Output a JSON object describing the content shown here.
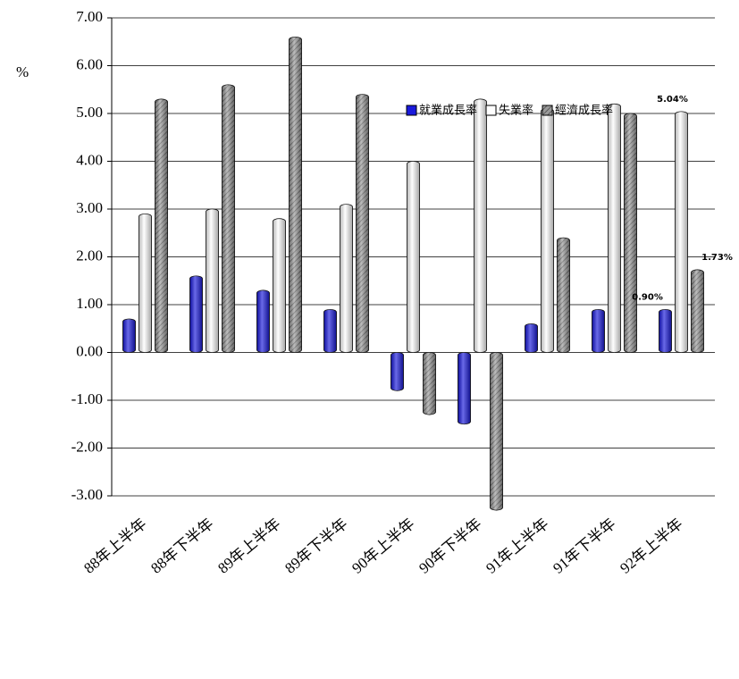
{
  "chart_data": {
    "type": "bar",
    "y_label": "%",
    "categories": [
      "88年上半年",
      "88年下半年",
      "89年上半年",
      "89年下半年",
      "90年上半年",
      "90年下半年",
      "91年上半年",
      "91年下半年",
      "92年上半年"
    ],
    "series": [
      {
        "name": "就業成長率",
        "color": "#1a1adc",
        "values": [
          0.7,
          1.6,
          1.3,
          0.9,
          -0.8,
          -1.5,
          0.6,
          0.9,
          0.9
        ],
        "value_labels": [
          null,
          null,
          null,
          null,
          null,
          null,
          null,
          null,
          "0.90%"
        ]
      },
      {
        "name": "失業率",
        "color": "#ffffff",
        "values": [
          2.9,
          3.0,
          2.8,
          3.1,
          4.0,
          5.3,
          5.1,
          5.2,
          5.04
        ],
        "value_labels": [
          null,
          null,
          null,
          null,
          null,
          null,
          null,
          null,
          "5.04%"
        ]
      },
      {
        "name": "經濟成長率",
        "color": "#8c8c8c",
        "pattern": "hatch",
        "values": [
          5.3,
          5.6,
          6.6,
          5.4,
          -1.3,
          -3.3,
          2.4,
          5.0,
          1.73
        ],
        "value_labels": [
          null,
          null,
          null,
          null,
          null,
          null,
          null,
          null,
          "1.73%"
        ]
      }
    ],
    "ylim": [
      -3,
      7
    ],
    "yticks": [
      {
        "value": -3,
        "label": "-3.00"
      },
      {
        "value": -2,
        "label": "-2.00"
      },
      {
        "value": -1,
        "label": "-1.00"
      },
      {
        "value": 0,
        "label": "0.00"
      },
      {
        "value": 1,
        "label": "1.00"
      },
      {
        "value": 2,
        "label": "2.00"
      },
      {
        "value": 3,
        "label": "3.00"
      },
      {
        "value": 4,
        "label": "4.00"
      },
      {
        "value": 5,
        "label": "5.00"
      },
      {
        "value": 6,
        "label": "6.00"
      },
      {
        "value": 7,
        "label": "7.00"
      }
    ],
    "grid": true,
    "legend": "top-right"
  }
}
